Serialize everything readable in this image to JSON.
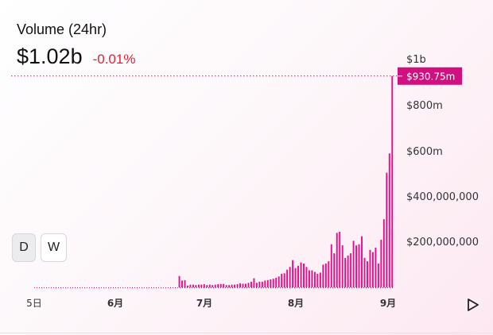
{
  "header": {
    "title": "Volume (24hr)",
    "value": "$1.02b",
    "change": "-0.01%"
  },
  "colors": {
    "bar": "#e0118a",
    "crosshair": "#d10f7f",
    "change_negative": "#e0203a"
  },
  "intervals": [
    {
      "label": "D",
      "active": true
    },
    {
      "label": "W",
      "active": false
    }
  ],
  "play_icon": "play-icon",
  "chart_data": {
    "type": "bar",
    "x_tick_labels": [
      "5日",
      "6月",
      "7月",
      "8月",
      "9月"
    ],
    "y_tick_labels": [
      "$1b",
      "$800m",
      "$600m",
      "$400,000,000",
      "$200,000,000"
    ],
    "y_ticks": [
      1000,
      800,
      600,
      400,
      200
    ],
    "ylim": [
      0,
      1000
    ],
    "y_unit": "millions USD",
    "crosshair": {
      "value": 930.75,
      "label": "$930.75m"
    },
    "values": [
      1,
      1,
      1,
      1,
      1,
      1,
      1,
      1,
      1,
      1,
      1,
      1,
      1,
      1,
      1,
      1,
      1,
      1,
      1,
      1,
      1,
      1,
      1,
      1,
      1,
      1,
      1,
      1,
      1,
      1,
      1,
      1,
      1,
      1,
      1,
      1,
      1,
      1,
      1,
      1,
      2,
      1,
      2,
      1,
      1,
      2,
      1,
      1,
      2,
      1,
      2,
      1,
      50,
      30,
      32,
      8,
      12,
      12,
      10,
      12,
      12,
      14,
      10,
      12,
      10,
      12,
      14,
      15,
      15,
      10,
      10,
      12,
      12,
      14,
      18,
      16,
      16,
      20,
      25,
      40,
      20,
      25,
      25,
      30,
      32,
      35,
      38,
      42,
      48,
      60,
      62,
      78,
      90,
      120,
      85,
      95,
      110,
      105,
      90,
      75,
      75,
      68,
      60,
      65,
      100,
      105,
      115,
      190,
      150,
      240,
      245,
      185,
      130,
      140,
      150,
      205,
      185,
      190,
      225,
      130,
      115,
      165,
      155,
      175,
      105,
      210,
      300,
      505,
      590,
      930.75
    ],
    "grid": false,
    "legend": "none"
  }
}
